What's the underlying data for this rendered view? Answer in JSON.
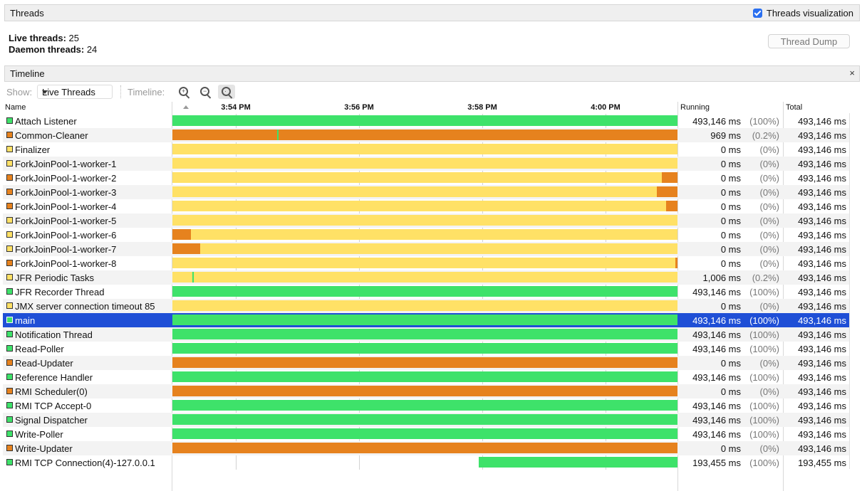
{
  "header": {
    "title": "Threads",
    "viz_label": "Threads visualization",
    "viz_checked": true
  },
  "stats": {
    "live_label": "Live threads:",
    "live_value": "25",
    "daemon_label": "Daemon threads:",
    "daemon_value": "24"
  },
  "thread_dump_label": "Thread Dump",
  "timeline": {
    "title": "Timeline",
    "close_glyph": "×"
  },
  "toolbar": {
    "show_label": "Show:",
    "show_value": "Live Threads",
    "timeline_label": "Timeline:",
    "zoom_in_icon": "zoom-in-icon",
    "zoom_out_icon": "zoom-out-icon",
    "zoom_fit_icon": "zoom-fit-icon"
  },
  "columns": {
    "name": "Name",
    "running": "Running",
    "total": "Total"
  },
  "time_labels": [
    "3:54 PM",
    "3:56 PM",
    "3:58 PM",
    "4:00 PM"
  ],
  "colors": {
    "running": "#3ee26a",
    "waiting": "#e6821e",
    "sleeping": "#ffe166",
    "selected": "#1f4fd6"
  },
  "threads": [
    {
      "name": "Attach Listener",
      "state": "running",
      "segments": [
        [
          "running",
          0,
          1
        ]
      ],
      "running": "493,146 ms",
      "pct": "(100%)",
      "total": "493,146 ms"
    },
    {
      "name": "Common-Cleaner",
      "state": "waiting",
      "segments": [
        [
          "waiting",
          0,
          0.208
        ],
        [
          "running",
          0.208,
          0.21
        ],
        [
          "waiting",
          0.21,
          1
        ]
      ],
      "running": "969 ms",
      "pct": "(0.2%)",
      "total": "493,146 ms"
    },
    {
      "name": "Finalizer",
      "state": "sleeping",
      "segments": [
        [
          "sleeping",
          0,
          1
        ]
      ],
      "running": "0 ms",
      "pct": "(0%)",
      "total": "493,146 ms"
    },
    {
      "name": "ForkJoinPool-1-worker-1",
      "state": "sleeping",
      "segments": [
        [
          "sleeping",
          0,
          1
        ]
      ],
      "running": "0 ms",
      "pct": "(0%)",
      "total": "493,146 ms"
    },
    {
      "name": "ForkJoinPool-1-worker-2",
      "state": "waiting",
      "segments": [
        [
          "sleeping",
          0,
          0.969
        ],
        [
          "waiting",
          0.969,
          1
        ]
      ],
      "running": "0 ms",
      "pct": "(0%)",
      "total": "493,146 ms"
    },
    {
      "name": "ForkJoinPool-1-worker-3",
      "state": "waiting",
      "segments": [
        [
          "sleeping",
          0,
          0.959
        ],
        [
          "waiting",
          0.959,
          1
        ]
      ],
      "running": "0 ms",
      "pct": "(0%)",
      "total": "493,146 ms"
    },
    {
      "name": "ForkJoinPool-1-worker-4",
      "state": "waiting",
      "segments": [
        [
          "sleeping",
          0,
          0.977
        ],
        [
          "waiting",
          0.977,
          1
        ]
      ],
      "running": "0 ms",
      "pct": "(0%)",
      "total": "493,146 ms"
    },
    {
      "name": "ForkJoinPool-1-worker-5",
      "state": "sleeping",
      "segments": [
        [
          "sleeping",
          0,
          1
        ]
      ],
      "running": "0 ms",
      "pct": "(0%)",
      "total": "493,146 ms"
    },
    {
      "name": "ForkJoinPool-1-worker-6",
      "state": "sleeping",
      "segments": [
        [
          "waiting",
          0,
          0.037
        ],
        [
          "sleeping",
          0.037,
          1
        ]
      ],
      "running": "0 ms",
      "pct": "(0%)",
      "total": "493,146 ms"
    },
    {
      "name": "ForkJoinPool-1-worker-7",
      "state": "sleeping",
      "segments": [
        [
          "waiting",
          0,
          0.055
        ],
        [
          "sleeping",
          0.055,
          1
        ]
      ],
      "running": "0 ms",
      "pct": "(0%)",
      "total": "493,146 ms"
    },
    {
      "name": "ForkJoinPool-1-worker-8",
      "state": "waiting",
      "segments": [
        [
          "sleeping",
          0,
          0.996
        ],
        [
          "waiting",
          0.996,
          1
        ]
      ],
      "running": "0 ms",
      "pct": "(0%)",
      "total": "493,146 ms"
    },
    {
      "name": "JFR Periodic Tasks",
      "state": "sleeping",
      "segments": [
        [
          "sleeping",
          0,
          0.04
        ],
        [
          "running",
          0.04,
          0.042
        ],
        [
          "sleeping",
          0.042,
          1
        ]
      ],
      "running": "1,006 ms",
      "pct": "(0.2%)",
      "total": "493,146 ms"
    },
    {
      "name": "JFR Recorder Thread",
      "state": "running",
      "segments": [
        [
          "running",
          0,
          1
        ]
      ],
      "running": "493,146 ms",
      "pct": "(100%)",
      "total": "493,146 ms"
    },
    {
      "name": "JMX server connection timeout 85",
      "state": "sleeping",
      "segments": [
        [
          "sleeping",
          0,
          1
        ]
      ],
      "running": "0 ms",
      "pct": "(0%)",
      "total": "493,146 ms"
    },
    {
      "name": "main",
      "state": "running",
      "selected": true,
      "segments": [
        [
          "running",
          0,
          1
        ]
      ],
      "running": "493,146 ms",
      "pct": "(100%)",
      "total": "493,146 ms"
    },
    {
      "name": "Notification Thread",
      "state": "running",
      "segments": [
        [
          "running",
          0,
          1
        ]
      ],
      "running": "493,146 ms",
      "pct": "(100%)",
      "total": "493,146 ms"
    },
    {
      "name": "Read-Poller",
      "state": "running",
      "segments": [
        [
          "running",
          0,
          1
        ]
      ],
      "running": "493,146 ms",
      "pct": "(100%)",
      "total": "493,146 ms"
    },
    {
      "name": "Read-Updater",
      "state": "waiting",
      "segments": [
        [
          "waiting",
          0,
          1
        ]
      ],
      "running": "0 ms",
      "pct": "(0%)",
      "total": "493,146 ms"
    },
    {
      "name": "Reference Handler",
      "state": "running",
      "segments": [
        [
          "running",
          0,
          1
        ]
      ],
      "running": "493,146 ms",
      "pct": "(100%)",
      "total": "493,146 ms"
    },
    {
      "name": "RMI Scheduler(0)",
      "state": "waiting",
      "segments": [
        [
          "waiting",
          0,
          1
        ]
      ],
      "running": "0 ms",
      "pct": "(0%)",
      "total": "493,146 ms"
    },
    {
      "name": "RMI TCP Accept-0",
      "state": "running",
      "segments": [
        [
          "running",
          0,
          1
        ]
      ],
      "running": "493,146 ms",
      "pct": "(100%)",
      "total": "493,146 ms"
    },
    {
      "name": "Signal Dispatcher",
      "state": "running",
      "segments": [
        [
          "running",
          0,
          1
        ]
      ],
      "running": "493,146 ms",
      "pct": "(100%)",
      "total": "493,146 ms"
    },
    {
      "name": "Write-Poller",
      "state": "running",
      "segments": [
        [
          "running",
          0,
          1
        ]
      ],
      "running": "493,146 ms",
      "pct": "(100%)",
      "total": "493,146 ms"
    },
    {
      "name": "Write-Updater",
      "state": "waiting",
      "segments": [
        [
          "waiting",
          0,
          1
        ]
      ],
      "running": "0 ms",
      "pct": "(0%)",
      "total": "493,146 ms"
    },
    {
      "name": "RMI TCP Connection(4)-127.0.0.1",
      "state": "running",
      "segments": [
        [
          "running",
          0.607,
          1
        ]
      ],
      "running": "193,455 ms",
      "pct": "(100%)",
      "total": "193,455 ms"
    }
  ]
}
